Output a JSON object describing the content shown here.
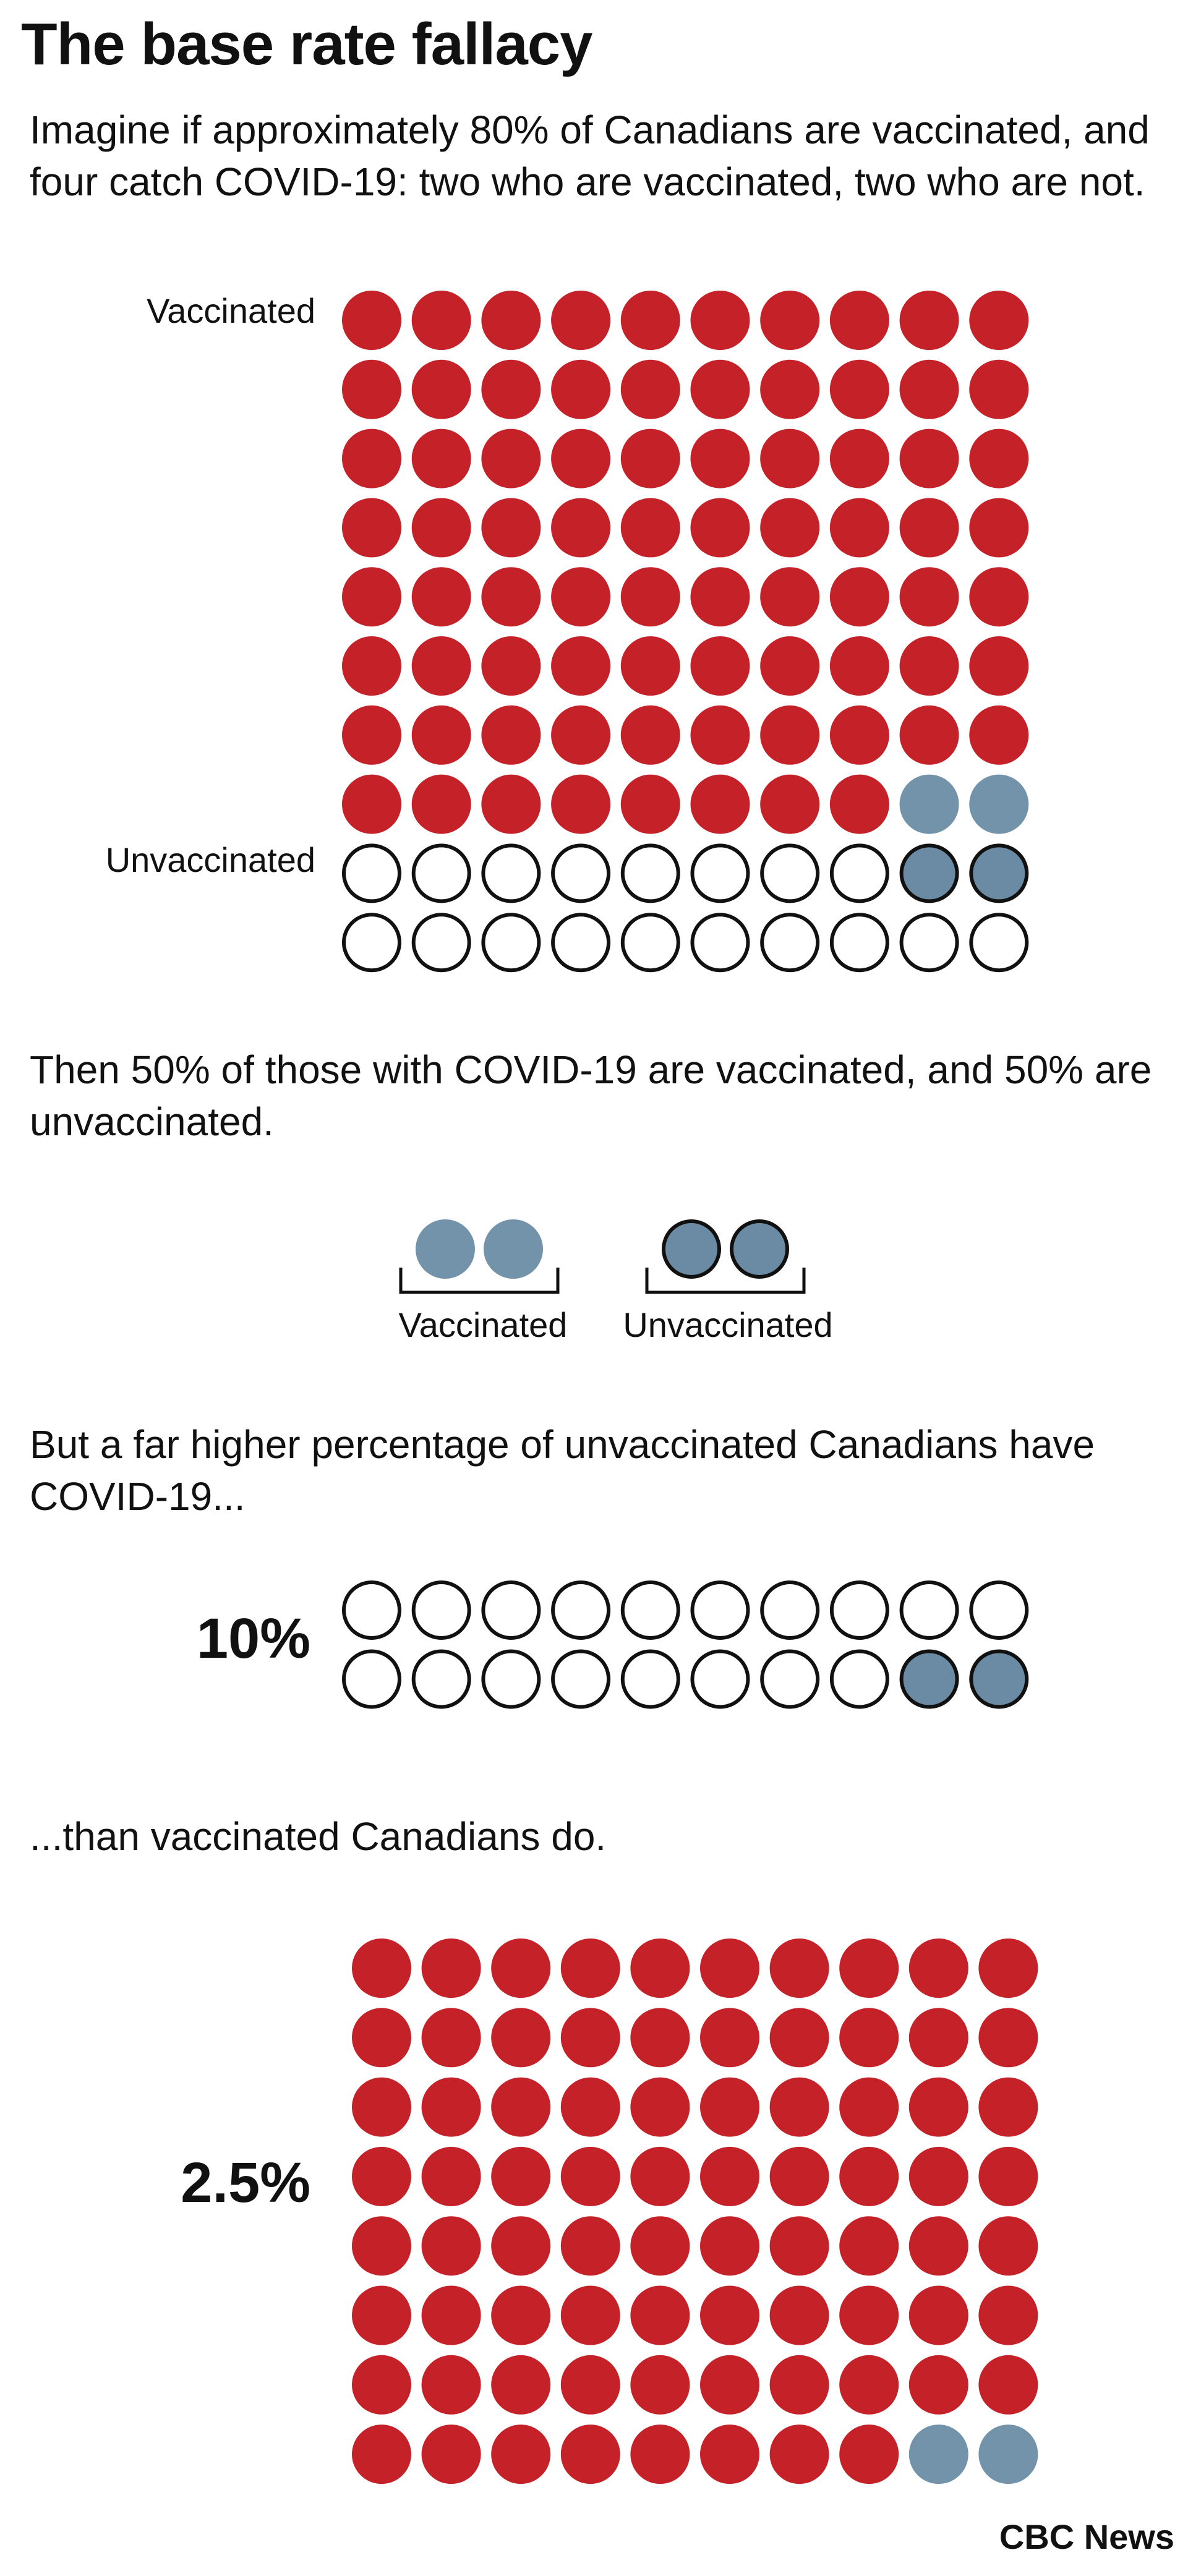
{
  "title": "The base rate fallacy",
  "intro_text": "Imagine if approximately 80% of Canadians are vaccinated, and four catch COVID-19: two who are vaccinated, two who are not.",
  "population_chart": {
    "vaccinated_label": "Vaccinated",
    "unvaccinated_label": "Unvaccinated",
    "rows": 10,
    "cols": 10,
    "vaccinated_count": 80,
    "unvaccinated_count": 20,
    "vaccinated_with_covid": 2,
    "unvaccinated_with_covid": 2
  },
  "split_text": "Then 50% of those with COVID-19 are vaccinated, and 50% are unvaccinated.",
  "split_chart": {
    "vaccinated_label": "Vaccinated",
    "unvaccinated_label": "Unvaccinated",
    "vaccinated_count": 2,
    "unvaccinated_count": 2
  },
  "unvax_text": "But a far higher percentage of unvaccinated Canadians have COVID-19...",
  "unvax_chart": {
    "percent_label": "10%",
    "total": 20,
    "with_covid": 2
  },
  "vax_text": "...than vaccinated Canadians do.",
  "vax_chart": {
    "percent_label": "2.5%",
    "total": 80,
    "with_covid": 2
  },
  "credit": "CBC News",
  "colors": {
    "vaccinated_red": "#C42128",
    "covid_vaccinated_blue": "#7293AA",
    "covid_unvaccinated_blue": "#6A8BA3",
    "outline": "#111111",
    "unvaccinated_fill": "#FFFFFF"
  }
}
